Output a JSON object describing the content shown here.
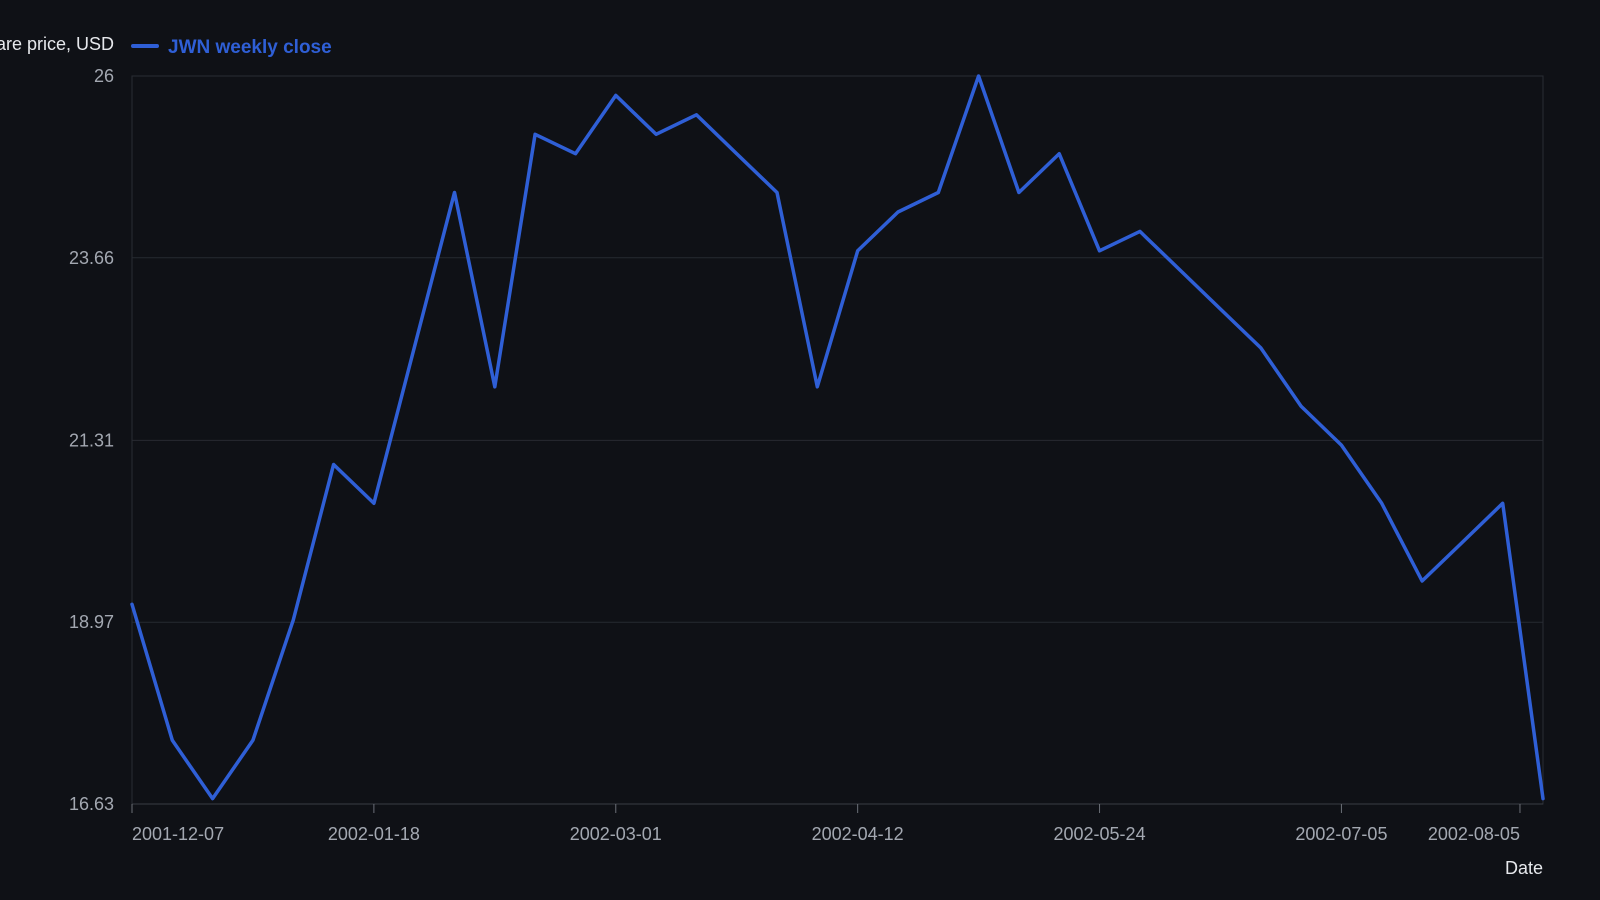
{
  "chart_data": {
    "type": "line",
    "ylabel": "Share price, USD",
    "xlabel": "Date",
    "x_ticks": [
      "2001-12-07",
      "2002-01-18",
      "2002-03-01",
      "2002-04-12",
      "2002-05-24",
      "2002-07-05",
      "2002-08-05"
    ],
    "y_ticks": [
      "16.63",
      "18.97",
      "21.31",
      "23.66",
      "26"
    ],
    "ylim": [
      16.63,
      26
    ],
    "xlim": [
      "2001-12-07",
      "2002-08-09"
    ],
    "grid": true,
    "legend_position": "top-left",
    "series": [
      {
        "name": "JWN weekly close",
        "color": "#2f5fd6",
        "points": [
          [
            "2001-12-07",
            19.2
          ],
          [
            "2001-12-14",
            17.45
          ],
          [
            "2001-12-21",
            16.7
          ],
          [
            "2001-12-28",
            17.45
          ],
          [
            "2002-01-04",
            19.0
          ],
          [
            "2002-01-11",
            21.0
          ],
          [
            "2002-01-18",
            20.5
          ],
          [
            "2002-01-25",
            22.5
          ],
          [
            "2002-02-01",
            24.5
          ],
          [
            "2002-02-08",
            22.0
          ],
          [
            "2002-02-15",
            25.25
          ],
          [
            "2002-02-22",
            25.0
          ],
          [
            "2002-03-01",
            25.75
          ],
          [
            "2002-03-08",
            25.25
          ],
          [
            "2002-03-15",
            25.5
          ],
          [
            "2002-03-22",
            25.0
          ],
          [
            "2002-03-29",
            24.5
          ],
          [
            "2002-04-05",
            22.0
          ],
          [
            "2002-04-12",
            23.75
          ],
          [
            "2002-04-19",
            24.25
          ],
          [
            "2002-04-26",
            24.5
          ],
          [
            "2002-05-03",
            26.0
          ],
          [
            "2002-05-10",
            24.5
          ],
          [
            "2002-05-17",
            25.0
          ],
          [
            "2002-05-24",
            23.75
          ],
          [
            "2002-05-31",
            24.0
          ],
          [
            "2002-06-07",
            23.5
          ],
          [
            "2002-06-14",
            23.0
          ],
          [
            "2002-06-21",
            22.5
          ],
          [
            "2002-06-28",
            21.75
          ],
          [
            "2002-07-05",
            21.25
          ],
          [
            "2002-07-12",
            20.5
          ],
          [
            "2002-07-19",
            19.5
          ],
          [
            "2002-07-26",
            20.0
          ],
          [
            "2002-08-02",
            20.5
          ],
          [
            "2002-08-09",
            16.7
          ]
        ]
      }
    ]
  }
}
